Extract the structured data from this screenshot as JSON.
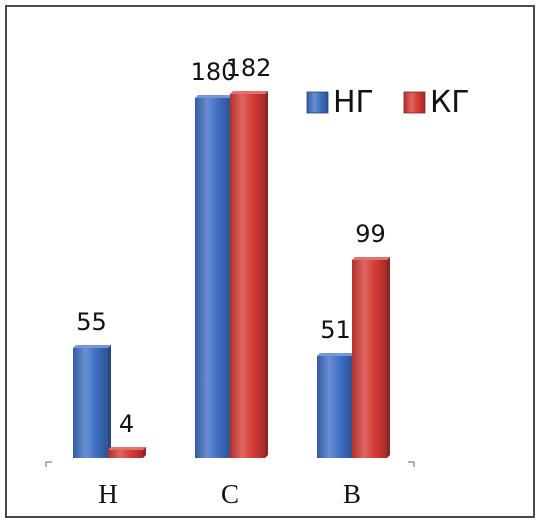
{
  "chart_data": {
    "type": "bar",
    "categories": [
      "Н",
      "С",
      "В"
    ],
    "series": [
      {
        "name": "НГ",
        "values": [
          55,
          180,
          51
        ],
        "color": "#3f6fc4"
      },
      {
        "name": "КГ",
        "values": [
          4,
          182,
          99
        ],
        "color": "#d63b36"
      }
    ],
    "data_labels": true,
    "legend_position": "top-right",
    "grid": false,
    "ylim": [
      0,
      200
    ]
  }
}
